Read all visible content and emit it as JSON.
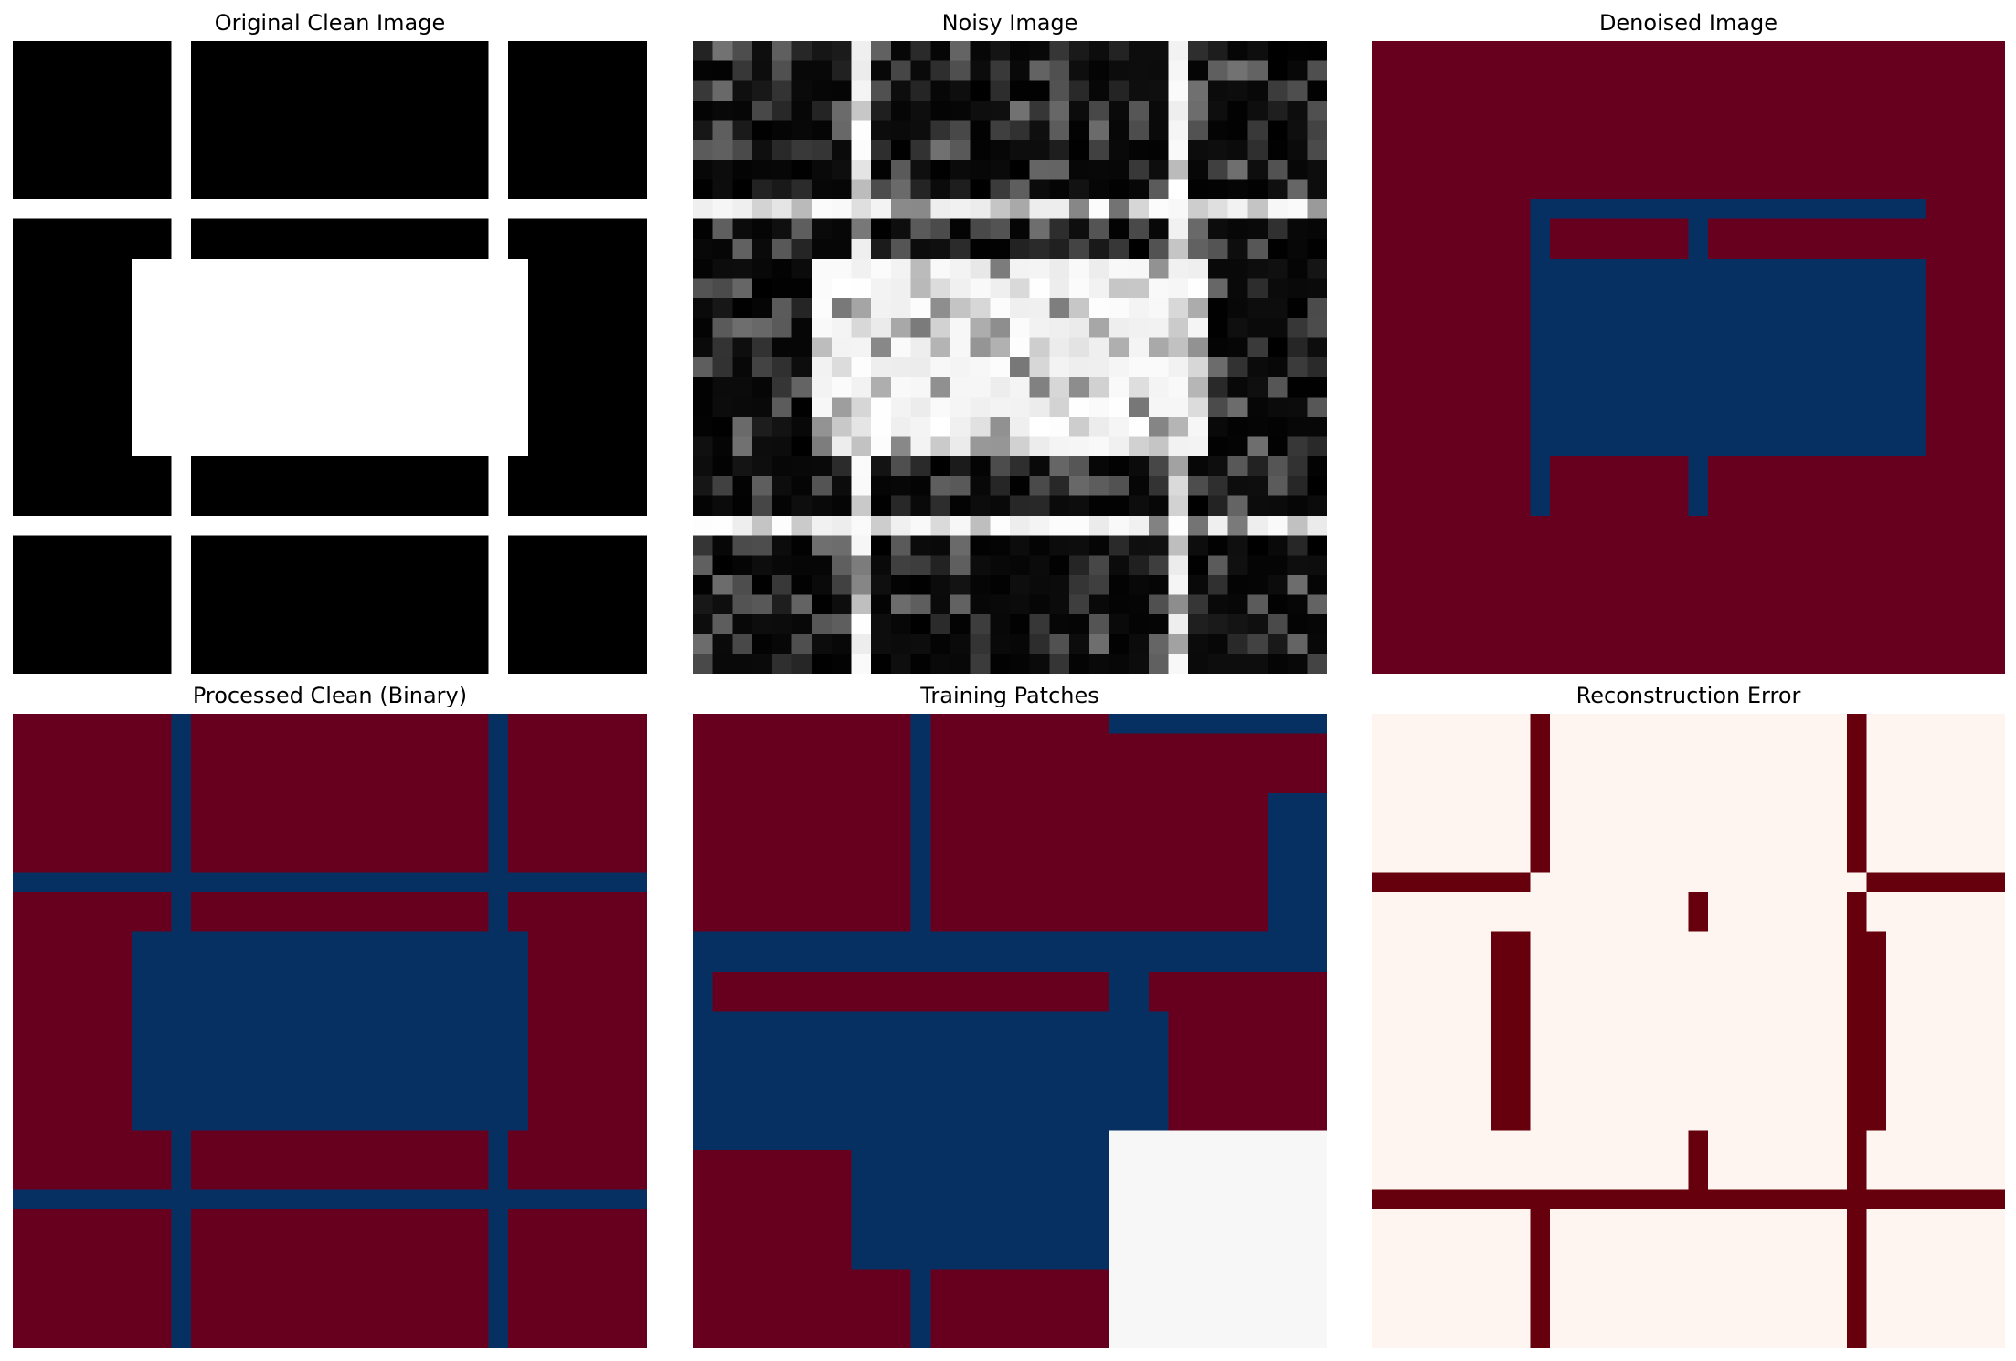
{
  "grid_size": 32,
  "colors": {
    "black": "#000000",
    "white": "#ffffff",
    "rdbu_red": "#67001f",
    "rdbu_blue": "#053061",
    "rdbu_mid": "#f7f7f7",
    "reds_low": "#fff5f0",
    "reds_high": "#67000d"
  },
  "panels": [
    {
      "key": "original",
      "title": "Original Clean Image",
      "colormap": "gray"
    },
    {
      "key": "noisy",
      "title": "Noisy Image",
      "colormap": "gray"
    },
    {
      "key": "denoised",
      "title": "Denoised Image",
      "colormap": "RdBu"
    },
    {
      "key": "processed",
      "title": "Processed Clean (Binary)",
      "colormap": "RdBu"
    },
    {
      "key": "patches",
      "title": "Training Patches",
      "colormap": "RdBu"
    },
    {
      "key": "error",
      "title": "Reconstruction Error",
      "colormap": "Reds"
    }
  ],
  "chart_data": {
    "type": "heatmap",
    "grid": [
      32,
      32
    ],
    "original": {
      "background": 0,
      "line_rows": [
        8,
        24
      ],
      "line_cols": [
        8,
        24
      ],
      "line_value": 1,
      "filled_rect": {
        "rows": [
          11,
          20
        ],
        "cols": [
          6,
          25
        ],
        "value": 1
      }
    },
    "noisy": {
      "base": "original",
      "noise": "random gray-level noise"
    },
    "denoised": {
      "background": 1,
      "rects": [
        {
          "rows": [
            8,
            8
          ],
          "cols": [
            8,
            27
          ],
          "value": -1
        },
        {
          "rows": [
            9,
            10
          ],
          "cols": [
            8,
            8
          ],
          "value": -1
        },
        {
          "rows": [
            9,
            10
          ],
          "cols": [
            16,
            16
          ],
          "value": -1
        },
        {
          "rows": [
            11,
            20
          ],
          "cols": [
            8,
            27
          ],
          "value": -1
        },
        {
          "rows": [
            21,
            23
          ],
          "cols": [
            8,
            8
          ],
          "value": -1
        },
        {
          "rows": [
            21,
            23
          ],
          "cols": [
            16,
            16
          ],
          "value": -1
        }
      ]
    },
    "processed": {
      "background": 1,
      "line_rows": [
        8,
        24
      ],
      "line_cols": [
        8,
        24
      ],
      "line_value": -1,
      "filled_rect": {
        "rows": [
          11,
          20
        ],
        "cols": [
          6,
          25
        ],
        "value": -1
      }
    },
    "patches": {
      "background": 1,
      "rects": [
        {
          "rows": [
            0,
            10
          ],
          "cols": [
            11,
            11
          ],
          "value": -1
        },
        {
          "rows": [
            0,
            0
          ],
          "cols": [
            21,
            31
          ],
          "value": -1
        },
        {
          "rows": [
            4,
            10
          ],
          "cols": [
            29,
            31
          ],
          "value": -1
        },
        {
          "rows": [
            11,
            12
          ],
          "cols": [
            0,
            31
          ],
          "value": -1
        },
        {
          "rows": [
            13,
            14
          ],
          "cols": [
            0,
            0
          ],
          "value": -1
        },
        {
          "rows": [
            13,
            14
          ],
          "cols": [
            21,
            22
          ],
          "value": -1
        },
        {
          "rows": [
            15,
            21
          ],
          "cols": [
            0,
            23
          ],
          "value": -1
        },
        {
          "rows": [
            22,
            27
          ],
          "cols": [
            8,
            20
          ],
          "value": -1
        },
        {
          "rows": [
            28,
            31
          ],
          "cols": [
            11,
            11
          ],
          "value": -1
        },
        {
          "rows": [
            21,
            31
          ],
          "cols": [
            21,
            31
          ],
          "value": 0
        }
      ]
    },
    "error": {
      "background": 0,
      "rects": [
        {
          "rows": [
            0,
            7
          ],
          "cols": [
            8,
            8
          ],
          "value": 1
        },
        {
          "rows": [
            8,
            8
          ],
          "cols": [
            0,
            7
          ],
          "value": 1
        },
        {
          "rows": [
            8,
            8
          ],
          "cols": [
            25,
            31
          ],
          "value": 1
        },
        {
          "rows": [
            0,
            7
          ],
          "cols": [
            24,
            24
          ],
          "value": 1
        },
        {
          "rows": [
            9,
            20
          ],
          "cols": [
            24,
            24
          ],
          "value": 1
        },
        {
          "rows": [
            11,
            20
          ],
          "cols": [
            6,
            7
          ],
          "value": 1
        },
        {
          "rows": [
            11,
            20
          ],
          "cols": [
            25,
            25
          ],
          "value": 1
        },
        {
          "rows": [
            9,
            10
          ],
          "cols": [
            16,
            16
          ],
          "value": 1
        },
        {
          "rows": [
            21,
            23
          ],
          "cols": [
            16,
            16
          ],
          "value": 1
        },
        {
          "rows": [
            24,
            24
          ],
          "cols": [
            0,
            31
          ],
          "value": 1
        },
        {
          "rows": [
            25,
            31
          ],
          "cols": [
            8,
            8
          ],
          "value": 1
        },
        {
          "rows": [
            21,
            31
          ],
          "cols": [
            24,
            24
          ],
          "value": 1
        }
      ]
    }
  }
}
